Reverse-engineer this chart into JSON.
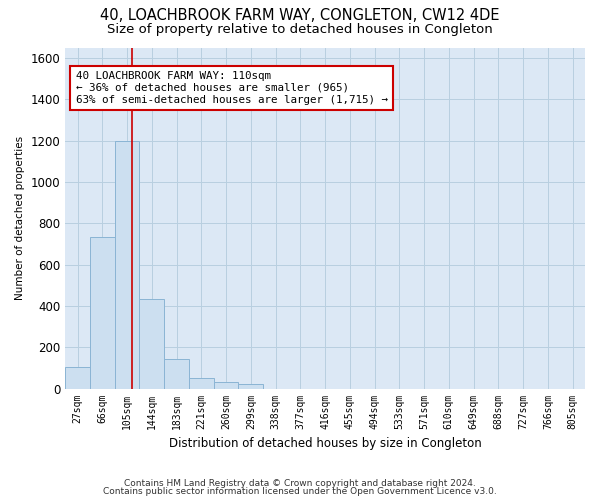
{
  "title": "40, LOACHBROOK FARM WAY, CONGLETON, CW12 4DE",
  "subtitle": "Size of property relative to detached houses in Congleton",
  "xlabel": "Distribution of detached houses by size in Congleton",
  "ylabel": "Number of detached properties",
  "footer1": "Contains HM Land Registry data © Crown copyright and database right 2024.",
  "footer2": "Contains public sector information licensed under the Open Government Licence v3.0.",
  "categories": [
    "27sqm",
    "66sqm",
    "105sqm",
    "144sqm",
    "183sqm",
    "221sqm",
    "260sqm",
    "299sqm",
    "338sqm",
    "377sqm",
    "416sqm",
    "455sqm",
    "494sqm",
    "533sqm",
    "571sqm",
    "610sqm",
    "649sqm",
    "688sqm",
    "727sqm",
    "766sqm",
    "805sqm"
  ],
  "values": [
    105,
    735,
    1200,
    435,
    145,
    50,
    30,
    20,
    0,
    0,
    0,
    0,
    0,
    0,
    0,
    0,
    0,
    0,
    0,
    0,
    0
  ],
  "bar_color": "#ccdff0",
  "bar_edge_color": "#8ab4d4",
  "line_color": "#cc0000",
  "line_x_index": 2.18,
  "ylim": [
    0,
    1650
  ],
  "yticks": [
    0,
    200,
    400,
    600,
    800,
    1000,
    1200,
    1400,
    1600
  ],
  "annotation_text": "40 LOACHBROOK FARM WAY: 110sqm\n← 36% of detached houses are smaller (965)\n63% of semi-detached houses are larger (1,715) →",
  "annotation_box_color": "#ffffff",
  "annotation_box_edge": "#cc0000",
  "background_color": "#ffffff",
  "axes_bg_color": "#dce8f5",
  "grid_color": "#b8cfe0",
  "title_fontsize": 10.5,
  "subtitle_fontsize": 9.5
}
